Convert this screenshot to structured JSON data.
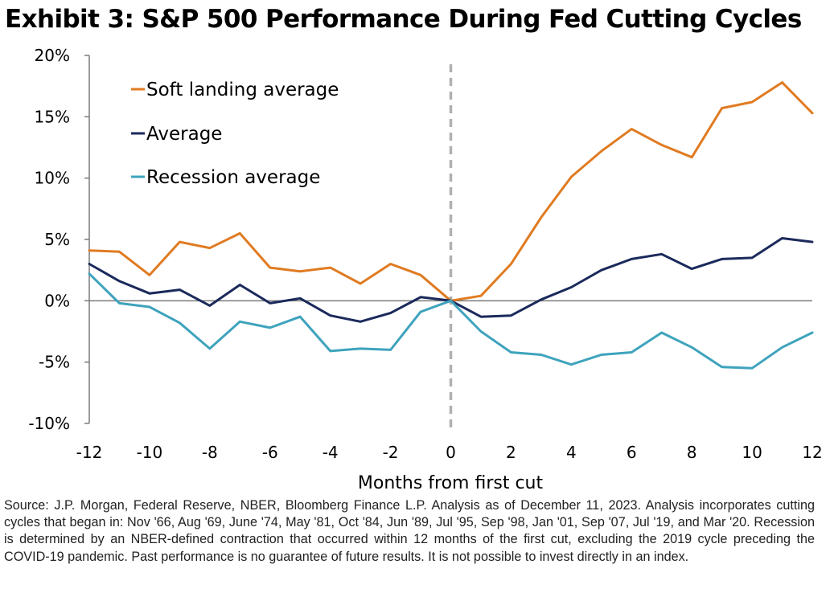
{
  "title": "Exhibit 3: S&P 500 Performance During Fed Cutting Cycles",
  "source": "Source: J.P. Morgan, Federal Reserve, NBER, Bloomberg Finance L.P. Analysis as of December 11, 2023. Analysis incorporates cutting cycles that began in: Nov '66, Aug '69, June '74, May '81, Oct '84, Jun '89, Jul '95, Sep '98, Jan '01, Sep '07, Jul '19, and Mar '20. Recession is determined by an NBER-defined contraction that occurred within 12 months of the first cut, excluding the 2019 cycle preceding the COVID-19 pandemic. Past performance is no guarantee of future results. It is not possible to invest directly in an index.",
  "chart_data": {
    "type": "line",
    "title": "",
    "xlabel": "Months from first cut",
    "ylabel": "",
    "xlim": [
      -12,
      12
    ],
    "ylim": [
      -10,
      20
    ],
    "x_ticks": [
      -12,
      -10,
      -8,
      -6,
      -4,
      -2,
      0,
      2,
      4,
      6,
      8,
      10,
      12
    ],
    "x_tick_labels": [
      "-12",
      "-10",
      "-8",
      "-6",
      "-4",
      "-2",
      "0",
      "2",
      "4",
      "6",
      "8",
      "10",
      "12"
    ],
    "y_ticks": [
      -10,
      -5,
      0,
      5,
      10,
      15,
      20
    ],
    "y_tick_labels": [
      "-10%",
      "-5%",
      "0%",
      "5%",
      "10%",
      "15%",
      "20%"
    ],
    "vertical_line": {
      "x": 0,
      "style": "dashed",
      "color": "#b0b0b0"
    },
    "grid": false,
    "legend": "top-left",
    "x": [
      -12,
      -11,
      -10,
      -9,
      -8,
      -7,
      -6,
      -5,
      -4,
      -3,
      -2,
      -1,
      0,
      1,
      2,
      3,
      4,
      5,
      6,
      7,
      8,
      9,
      10,
      11,
      12
    ],
    "series": [
      {
        "name": "Soft landing average",
        "color": "#e07b22",
        "values": [
          4.1,
          4.0,
          2.1,
          4.8,
          4.3,
          5.5,
          2.7,
          2.4,
          2.7,
          1.4,
          3.0,
          2.1,
          0.0,
          0.4,
          3.0,
          6.8,
          10.1,
          12.2,
          14.0,
          12.7,
          11.7,
          15.7,
          16.2,
          17.8,
          15.3
        ]
      },
      {
        "name": "Average",
        "color": "#1b2a5c",
        "values": [
          3.0,
          1.6,
          0.6,
          0.9,
          -0.4,
          1.3,
          -0.2,
          0.2,
          -1.2,
          -1.7,
          -1.0,
          0.3,
          0.0,
          -1.3,
          -1.2,
          0.1,
          1.1,
          2.5,
          3.4,
          3.8,
          2.6,
          3.4,
          3.5,
          5.1,
          4.8
        ]
      },
      {
        "name": "Recession average",
        "color": "#3ea3bd",
        "values": [
          2.2,
          -0.2,
          -0.5,
          -1.8,
          -3.9,
          -1.7,
          -2.2,
          -1.3,
          -4.1,
          -3.9,
          -4.0,
          -0.9,
          0.0,
          -2.5,
          -4.2,
          -4.4,
          -5.2,
          -4.4,
          -4.2,
          -2.6,
          -3.8,
          -5.4,
          -5.5,
          -3.8,
          -2.6
        ]
      }
    ]
  }
}
